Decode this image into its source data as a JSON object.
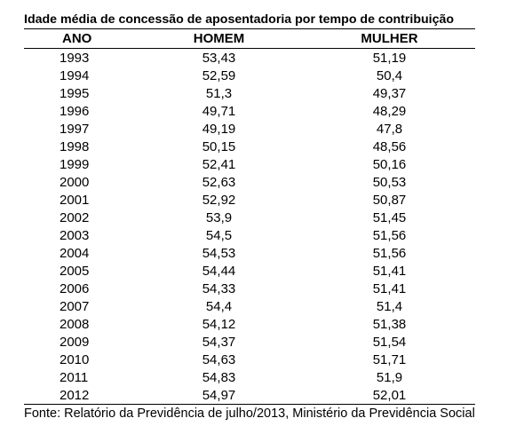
{
  "table": {
    "title": "Idade média de concessão de aposentadoria por tempo de contribuição",
    "headers": [
      "ANO",
      "HOMEM",
      "MULHER"
    ],
    "rows": [
      {
        "ano": "1993",
        "homem": "53,43",
        "mulher": "51,19"
      },
      {
        "ano": "1994",
        "homem": "52,59",
        "mulher": "50,4"
      },
      {
        "ano": "1995",
        "homem": "51,3",
        "mulher": "49,37"
      },
      {
        "ano": "1996",
        "homem": "49,71",
        "mulher": "48,29"
      },
      {
        "ano": "1997",
        "homem": "49,19",
        "mulher": "47,8"
      },
      {
        "ano": "1998",
        "homem": "50,15",
        "mulher": "48,56"
      },
      {
        "ano": "1999",
        "homem": "52,41",
        "mulher": "50,16"
      },
      {
        "ano": "2000",
        "homem": "52,63",
        "mulher": "50,53"
      },
      {
        "ano": "2001",
        "homem": "52,92",
        "mulher": "50,87"
      },
      {
        "ano": "2002",
        "homem": "53,9",
        "mulher": "51,45"
      },
      {
        "ano": "2003",
        "homem": "54,5",
        "mulher": "51,56"
      },
      {
        "ano": "2004",
        "homem": "54,53",
        "mulher": "51,56"
      },
      {
        "ano": "2005",
        "homem": "54,44",
        "mulher": "51,41"
      },
      {
        "ano": "2006",
        "homem": "54,33",
        "mulher": "51,41"
      },
      {
        "ano": "2007",
        "homem": "54,4",
        "mulher": "51,4"
      },
      {
        "ano": "2008",
        "homem": "54,12",
        "mulher": "51,38"
      },
      {
        "ano": "2009",
        "homem": "54,37",
        "mulher": "51,54"
      },
      {
        "ano": "2010",
        "homem": "54,63",
        "mulher": "51,71"
      },
      {
        "ano": "2011",
        "homem": "54,83",
        "mulher": "51,9"
      },
      {
        "ano": "2012",
        "homem": "54,97",
        "mulher": "52,01"
      }
    ],
    "source": "Fonte: Relatório da Previdência de julho/2013, Ministério da Previdência Social"
  }
}
